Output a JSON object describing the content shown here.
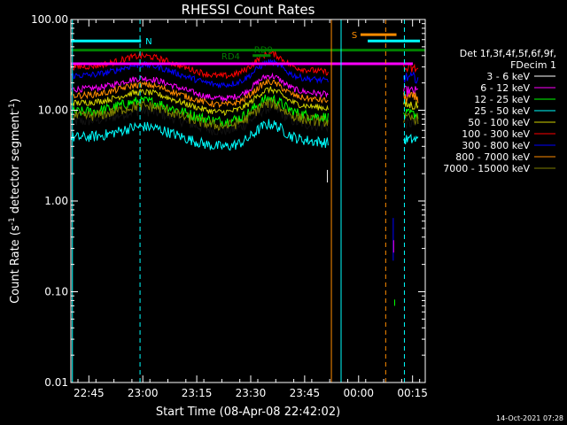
{
  "chart_data": {
    "type": "line",
    "title": "RHESSI Count Rates",
    "xlabel": "Start Time (08-Apr-08 22:42:02)",
    "ylabel": "Count Rate (s",
    "ylabel_sup": "-1",
    "ylabel_tail": " detector segment",
    "ylabel_sup2": "-1",
    "ylabel_close": ")",
    "yscale": "log",
    "ylim": [
      0.01,
      100
    ],
    "xlim": [
      -2.03,
      96.5
    ],
    "x_unit": "minutes since 22:42:02",
    "y_ticks": [
      {
        "value": 0.01,
        "label": "0.01"
      },
      {
        "value": 0.1,
        "label": "0.10"
      },
      {
        "value": 1,
        "label": "1.00"
      },
      {
        "value": 10,
        "label": "10.00"
      },
      {
        "value": 100,
        "label": "100.00"
      }
    ],
    "x_ticks": [
      {
        "value": 2.97,
        "label": "22:45"
      },
      {
        "value": 17.97,
        "label": "23:00"
      },
      {
        "value": 32.97,
        "label": "23:15"
      },
      {
        "value": 47.97,
        "label": "23:30"
      },
      {
        "value": 62.97,
        "label": "23:45"
      },
      {
        "value": 77.97,
        "label": "00:00"
      },
      {
        "value": 92.97,
        "label": "00:15"
      }
    ],
    "legend_header": [
      "Det 1f,3f,4f,5f,6f,9f,",
      "FDecim 1"
    ],
    "series": [
      {
        "name": "3 - 6 keV",
        "color": "#000000",
        "base": 7.5
      },
      {
        "name": "6 - 12 keV",
        "color": "#ff00ff",
        "base": 17.0
      },
      {
        "name": "12 - 25 keV",
        "color": "#00ff00",
        "base": 9.5
      },
      {
        "name": "25 - 50 keV",
        "color": "#00ffff",
        "base": 5.0
      },
      {
        "name": "50 - 100 keV",
        "color": "#d4d400",
        "base": 12.0
      },
      {
        "name": "100 - 300 keV",
        "color": "#ff0000",
        "base": 30.0
      },
      {
        "name": "300 - 800 keV",
        "color": "#0000ff",
        "base": 24.0
      },
      {
        "name": "800 - 7000 keV",
        "color": "#ff8c00",
        "base": 14.5
      },
      {
        "name": "7000 - 15000 keV",
        "color": "#808000",
        "base": 8.5
      }
    ],
    "annotations": [
      {
        "label": "N",
        "color": "#00ffff"
      },
      {
        "label": "S",
        "color": "#ff8c00"
      },
      {
        "label": "RD4",
        "color": "#008000"
      },
      {
        "label": "RD9",
        "color": "#008000"
      }
    ]
  },
  "footer": {
    "timestamp": "14-Oct-2021 07:28"
  }
}
